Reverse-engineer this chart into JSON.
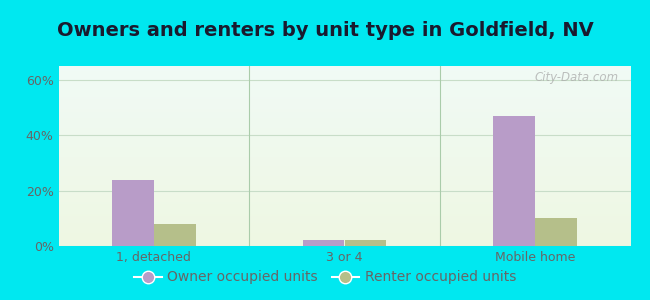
{
  "title": "Owners and renters by unit type in Goldfield, NV",
  "categories": [
    "1, detached",
    "3 or 4",
    "Mobile home"
  ],
  "owner_values": [
    24,
    2,
    47
  ],
  "renter_values": [
    8,
    2,
    10
  ],
  "owner_color": "#b89cc8",
  "renter_color": "#b5bf8a",
  "ylabel_ticks": [
    "0%",
    "20%",
    "40%",
    "60%"
  ],
  "ytick_values": [
    0,
    20,
    40,
    60
  ],
  "ylim": [
    0,
    65
  ],
  "background_outer": "#00e8f0",
  "title_fontsize": 14,
  "tick_fontsize": 9,
  "legend_fontsize": 10,
  "bar_width": 0.22,
  "watermark": "City-Data.com",
  "grad_top": "#f0faf5",
  "grad_bottom": "#eef7e2",
  "grid_color": "#c8ddc8",
  "text_color": "#666666",
  "divider_color": "#aaccaa",
  "title_color": "#1a1a2e"
}
